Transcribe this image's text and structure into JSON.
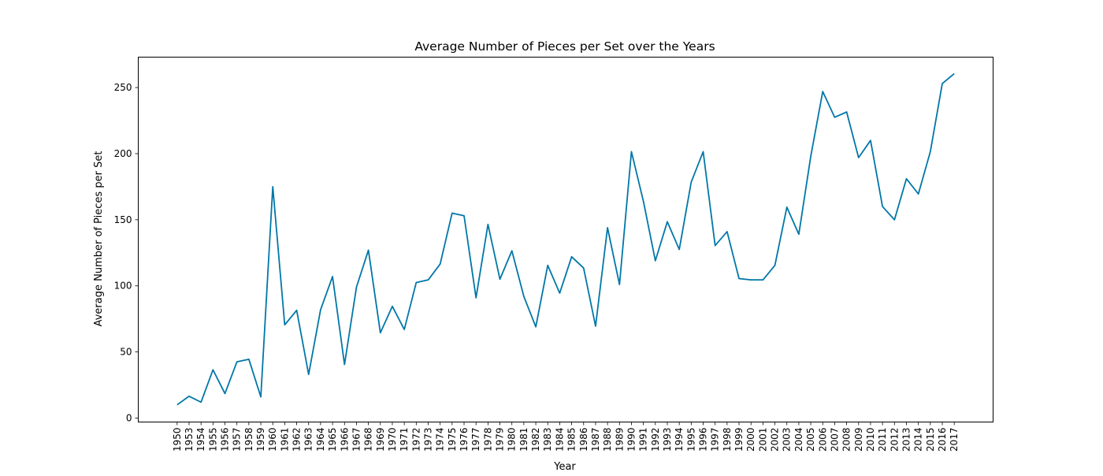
{
  "chart_data": {
    "type": "line",
    "title": "Average Number of Pieces per Set over the Years",
    "xlabel": "Year",
    "ylabel": "Average Number of Pieces per Set",
    "ylim": [
      -3,
      273
    ],
    "yticks": [
      0,
      50,
      100,
      150,
      200,
      250
    ],
    "grid": false,
    "line_color": "#0077a8",
    "categories": [
      "1950",
      "1953",
      "1954",
      "1955",
      "1956",
      "1957",
      "1958",
      "1959",
      "1960",
      "1961",
      "1962",
      "1963",
      "1964",
      "1965",
      "1966",
      "1967",
      "1968",
      "1969",
      "1970",
      "1971",
      "1972",
      "1973",
      "1974",
      "1975",
      "1976",
      "1977",
      "1978",
      "1979",
      "1980",
      "1981",
      "1982",
      "1983",
      "1984",
      "1985",
      "1986",
      "1987",
      "1988",
      "1989",
      "1990",
      "1991",
      "1992",
      "1993",
      "1994",
      "1995",
      "1996",
      "1997",
      "1998",
      "1999",
      "2000",
      "2001",
      "2002",
      "2003",
      "2004",
      "2005",
      "2006",
      "2007",
      "2008",
      "2009",
      "2010",
      "2011",
      "2012",
      "2013",
      "2014",
      "2015",
      "2016",
      "2017"
    ],
    "values": [
      10,
      16.5,
      12,
      36.5,
      18.5,
      42.5,
      44.5,
      16,
      175,
      70.5,
      81.5,
      33,
      82,
      107,
      40.5,
      99,
      127,
      64.5,
      84.5,
      67,
      102.5,
      104.5,
      116.5,
      155,
      153,
      91,
      146.5,
      105,
      126.5,
      92,
      69,
      115.5,
      94.5,
      122,
      113.5,
      69.5,
      144,
      101,
      201.5,
      164,
      119,
      148.5,
      127.5,
      178.5,
      201.5,
      130.5,
      141,
      105.5,
      104.5,
      104.5,
      115.5,
      159.5,
      139,
      198,
      247,
      227.5,
      231.5,
      197,
      210,
      160,
      150,
      181,
      169.5,
      201.5,
      253,
      260.5
    ]
  }
}
